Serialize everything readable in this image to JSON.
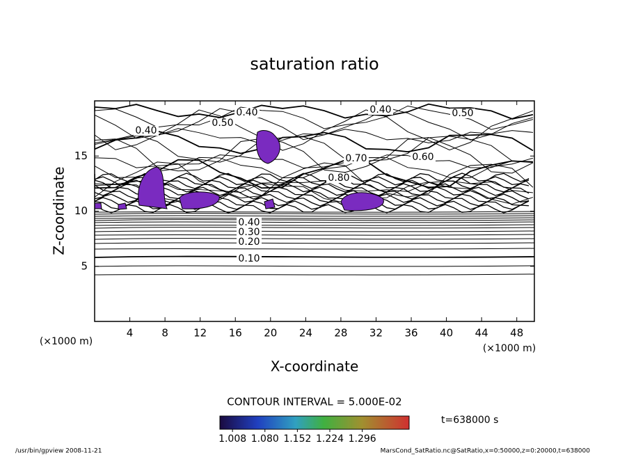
{
  "chart_data": {
    "type": "contour",
    "title": "saturation ratio",
    "xlabel": "X-coordinate",
    "ylabel": "Z-coordinate",
    "x_unit": "(×1000 m)",
    "xlim": [
      0,
      50
    ],
    "xticks": [
      4,
      8,
      12,
      16,
      20,
      24,
      28,
      32,
      36,
      40,
      44,
      48
    ],
    "ylim": [
      0,
      20
    ],
    "yticks": [
      5,
      10,
      15
    ],
    "contour_labels": [
      {
        "value": 0.1,
        "label": "0.10"
      },
      {
        "value": 0.2,
        "label": "0.20"
      },
      {
        "value": 0.3,
        "label": "0.30"
      },
      {
        "value": 0.4,
        "label": "0.40"
      },
      {
        "value": 0.4,
        "label": "0.40"
      },
      {
        "value": 0.4,
        "label": "0.40"
      },
      {
        "value": 0.4,
        "label": "0.40"
      },
      {
        "value": 0.5,
        "label": "0.50"
      },
      {
        "value": 0.5,
        "label": "0.50"
      },
      {
        "value": 0.6,
        "label": "0.60"
      },
      {
        "value": 0.7,
        "label": "0.70"
      },
      {
        "value": 0.8,
        "label": "0.80"
      }
    ],
    "fill_color": "#7a2bc0",
    "contour_interval": "CONTOUR INTERVAL = 5.000E-02",
    "colorbar": {
      "clim": [
        0.98,
        1.4
      ],
      "ticks": [
        1.008,
        {
          "value": 1.08,
          "label": "1.080"
        },
        1.152,
        1.224,
        1.296
      ]
    },
    "time_label": "t=638000 s",
    "footer_left": "/usr/bin/gpview  2008-11-21",
    "footer_right": "MarsCond_SatRatio.nc@SatRatio,x=0:50000,z=0:20000,t=638000"
  }
}
